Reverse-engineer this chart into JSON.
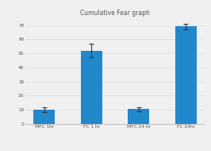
{
  "title": "Cumulative Fear graph",
  "categories": [
    "MFC 1hr",
    "FC 1 hr",
    "MFC 24 hr",
    "FC 24hr"
  ],
  "values": [
    10,
    52,
    10.5,
    69
  ],
  "errors": [
    1.5,
    5,
    1.5,
    2
  ],
  "bar_color": "#2288cc",
  "background_color": "#f0f0f0",
  "ylim": [
    0,
    75
  ],
  "yticks": [
    0,
    10,
    20,
    30,
    40,
    50,
    60,
    70
  ],
  "title_fontsize": 5.5,
  "tick_fontsize": 4.2,
  "bar_width": 0.45
}
